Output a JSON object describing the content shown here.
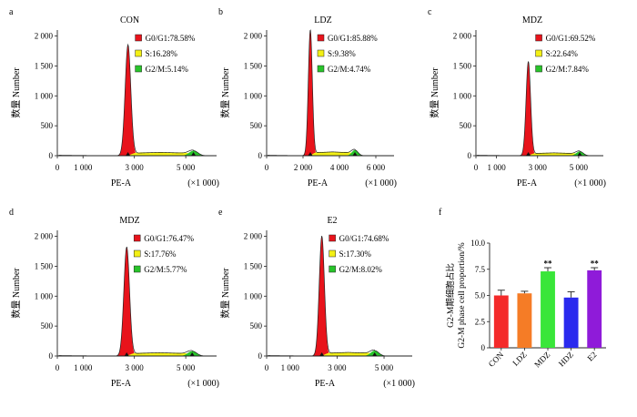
{
  "common": {
    "ylabel": "数量 Number",
    "xlabel": "PE-A",
    "xunit": "(×1 000)",
    "y_ticks": [
      "0",
      "500",
      "1 000",
      "1 500",
      "2 000"
    ],
    "phase_colors": {
      "g0g1": "#e8131b",
      "s": "#f3f015",
      "g2m": "#28c42a"
    }
  },
  "histograms": [
    {
      "letter": "a",
      "title": "CON",
      "x_ticks": [
        {
          "v": 0,
          "label": "0"
        },
        {
          "v": 1,
          "label": "1 000"
        },
        {
          "v": 3,
          "label": "3 000"
        },
        {
          "v": 5,
          "label": "5 000"
        }
      ],
      "legend": [
        "G0/G1:78.58%",
        "S:16.28%",
        "G2/M:5.14%"
      ],
      "g1_peak_x": 2.75,
      "g2_peak_x": 5.3,
      "peak_count": 1850
    },
    {
      "letter": "b",
      "title": "LDZ",
      "x_ticks": [
        {
          "v": 0,
          "label": "0"
        },
        {
          "v": 2,
          "label": "2 000"
        },
        {
          "v": 4,
          "label": "4 000"
        },
        {
          "v": 6,
          "label": "6 000"
        }
      ],
      "legend": [
        "G0/G1:85.88%",
        "S:9.38%",
        "G2/M:4.74%"
      ],
      "g1_peak_x": 2.4,
      "g2_peak_x": 4.85,
      "peak_count": 2100
    },
    {
      "letter": "c",
      "title": "MDZ",
      "x_ticks": [
        {
          "v": 0,
          "label": "0"
        },
        {
          "v": 1,
          "label": "1 000"
        },
        {
          "v": 3,
          "label": "3 000"
        },
        {
          "v": 5,
          "label": "5 000"
        }
      ],
      "legend": [
        "G0/G1:69.52%",
        "S:22.64%",
        "G2/M:7.84%"
      ],
      "g1_peak_x": 2.55,
      "g2_peak_x": 5.05,
      "peak_count": 1570
    },
    {
      "letter": "d",
      "title": "MDZ",
      "x_ticks": [
        {
          "v": 0,
          "label": "0"
        },
        {
          "v": 1,
          "label": "1 000"
        },
        {
          "v": 3,
          "label": "3 000"
        },
        {
          "v": 5,
          "label": "5 000"
        }
      ],
      "legend": [
        "G0/G1:76.47%",
        "S:17.76%",
        "G2/M:5.77%"
      ],
      "g1_peak_x": 2.7,
      "g2_peak_x": 5.25,
      "peak_count": 1820
    },
    {
      "letter": "e",
      "title": "E2",
      "x_ticks": [
        {
          "v": 0,
          "label": "0"
        },
        {
          "v": 1,
          "label": "1 000"
        },
        {
          "v": 3,
          "label": "3 000"
        },
        {
          "v": 5,
          "label": "5 000"
        }
      ],
      "legend": [
        "G0/G1:74.68%",
        "S:17.30%",
        "G2/M:8.02%"
      ],
      "g1_peak_x": 2.35,
      "g2_peak_x": 4.6,
      "peak_count": 2000
    }
  ],
  "chart_data": {
    "letter": "f",
    "type": "bar",
    "categories": [
      "CON",
      "LDZ",
      "MDZ",
      "HDZ",
      "E2"
    ],
    "values": [
      5.0,
      5.2,
      7.3,
      4.8,
      7.4
    ],
    "errors": [
      0.5,
      0.2,
      0.35,
      0.55,
      0.25
    ],
    "colors": [
      "#f42a2a",
      "#f57c26",
      "#39e639",
      "#2a2aee",
      "#8f1bd9"
    ],
    "annotations": [
      "",
      "",
      "**",
      "",
      "**"
    ],
    "ylabel_cn": "G2-M期细胞占比",
    "ylabel_en": "G2-M phase cell proportion/%",
    "ylim": [
      0,
      10
    ],
    "y_ticks": [
      "0",
      "2.5",
      "5.0",
      "7.5",
      "10.0"
    ]
  }
}
